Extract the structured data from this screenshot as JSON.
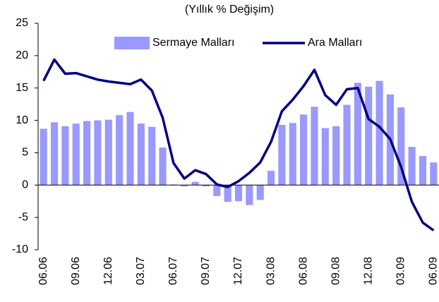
{
  "chart_data": {
    "type": "bar-line",
    "title": "(Yıllık % Değişim)",
    "categories": [
      "06.06",
      null,
      null,
      "09.06",
      null,
      null,
      "12.06",
      null,
      null,
      "03.07",
      null,
      null,
      "06.07",
      null,
      null,
      "09.07",
      null,
      null,
      "12.07",
      null,
      null,
      "03.08",
      null,
      null,
      "06.08",
      null,
      null,
      "09.08",
      null,
      null,
      "12.08",
      null,
      null,
      "03.09",
      null,
      null,
      "06.09"
    ],
    "series": [
      {
        "name": "Sermaye Malları",
        "type": "bar",
        "color": "#9999ff",
        "values": [
          8.7,
          9.7,
          9.1,
          9.5,
          9.9,
          10.0,
          10.1,
          10.8,
          11.3,
          9.5,
          9.0,
          5.8,
          0.1,
          -0.2,
          0.5,
          -0.2,
          -1.7,
          -2.6,
          -2.5,
          -3.1,
          -2.3,
          2.2,
          9.3,
          9.6,
          10.9,
          12.1,
          8.8,
          9.1,
          12.4,
          15.8,
          15.2,
          16.1,
          14.0,
          12.0,
          5.9,
          4.5,
          3.5
        ]
      },
      {
        "name": "Ara Malları",
        "type": "line",
        "color": "#000080",
        "values": [
          16.1,
          19.4,
          17.2,
          17.3,
          16.8,
          16.3,
          16.0,
          15.8,
          15.6,
          16.3,
          14.6,
          10.4,
          3.4,
          1.0,
          2.3,
          1.7,
          0.1,
          -0.3,
          0.6,
          1.9,
          3.5,
          6.7,
          11.4,
          13.2,
          15.3,
          17.8,
          13.9,
          12.4,
          14.8,
          15.0,
          10.2,
          9.0,
          7.1,
          2.8,
          -2.6,
          -5.8,
          -7.0
        ]
      }
    ],
    "ylim": [
      -10,
      25
    ],
    "yticks": [
      -10,
      -5,
      0,
      5,
      10,
      15,
      20,
      25
    ]
  }
}
